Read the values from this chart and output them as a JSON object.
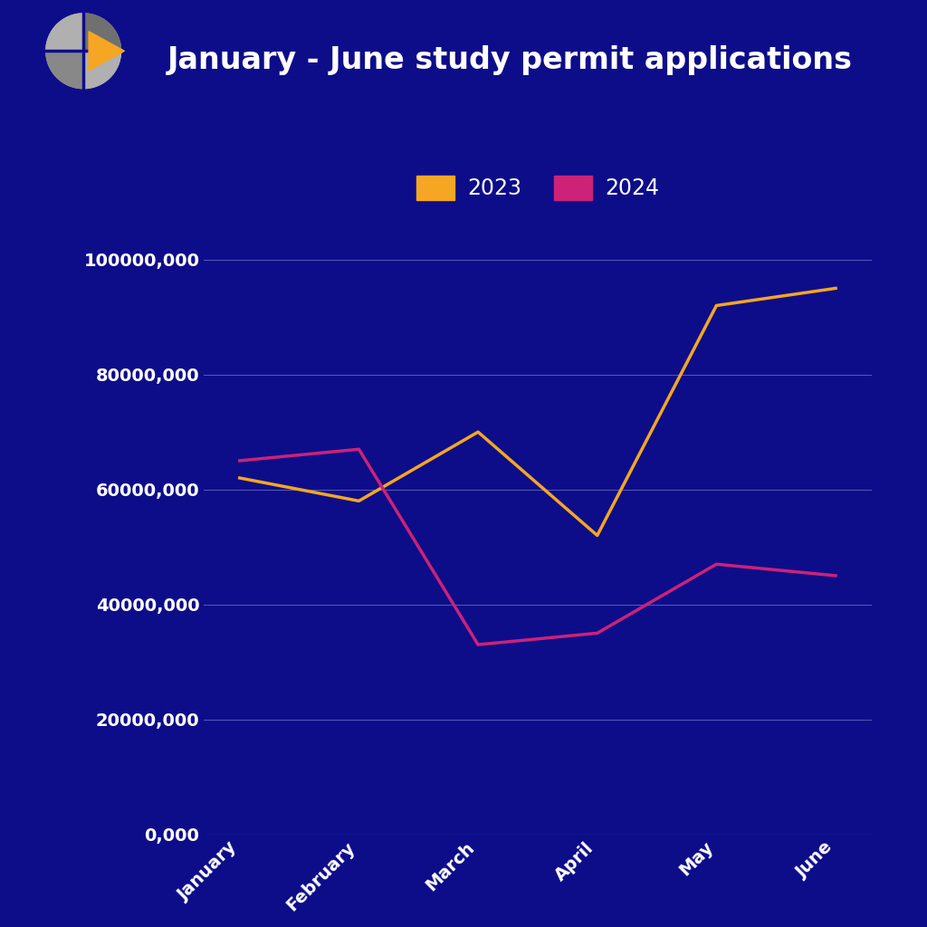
{
  "title": "January - June study permit applications",
  "background_color": "#0d0d8a",
  "months": [
    "January",
    "February",
    "March",
    "April",
    "May",
    "June"
  ],
  "series_2023": [
    62000000,
    58000000,
    70000000,
    52000000,
    92000000,
    95000000
  ],
  "series_2024": [
    65000000,
    67000000,
    33000000,
    35000000,
    47000000,
    45000000
  ],
  "color_2023": "#f5a623",
  "color_2024": "#cc2277",
  "ylim": [
    0,
    100000000
  ],
  "yticks": [
    0,
    20000000,
    40000000,
    60000000,
    80000000,
    100000000
  ],
  "ytick_labels": [
    "0,000",
    "20000,000",
    "40000,000",
    "60000,000",
    "80000,000",
    "100000,000"
  ],
  "title_fontsize": 24,
  "tick_fontsize": 14,
  "legend_fontsize": 17,
  "line_width": 2.5,
  "grid_color": "#5555bb",
  "text_color": "#ffffff",
  "legend_label_2023": "2023",
  "legend_label_2024": "2024"
}
